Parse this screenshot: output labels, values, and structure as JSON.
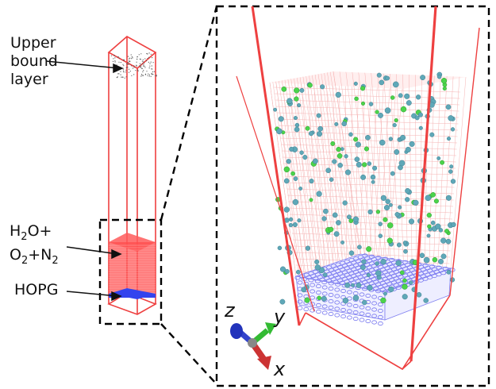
{
  "labels": {
    "upper_line1": "Upper",
    "upper_line2": "bound",
    "upper_line3": "layer",
    "gas_a1": "H",
    "gas_a_sub1": "2",
    "gas_a2": "O+",
    "gas_b1": "O",
    "gas_b_sub1": "2",
    "gas_b2": "+N",
    "gas_b_sub2": "2",
    "substrate": "HOPG"
  },
  "axes": {
    "x": "x",
    "y": "y",
    "z": "z"
  },
  "colors": {
    "box_edge": "#ee4040",
    "water_layer": "#ff3b3b",
    "hopg": "#3344ee",
    "hopg_ring": "#7b7bf0",
    "water_molecule": "#5fa8b8",
    "o2_molecule": "#4bd44b",
    "axis_x": "#cc3333",
    "axis_y": "#33bb33",
    "axis_z": "#3344cc"
  }
}
